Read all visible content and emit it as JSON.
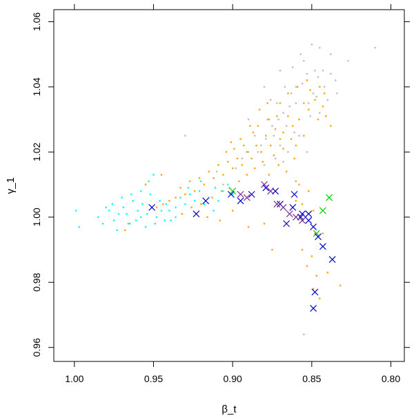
{
  "chart_data": {
    "type": "scatter",
    "xlabel": "β_t",
    "ylabel": "γ_1",
    "xlim": [
      1.013,
      0.7915
    ],
    "ylim": [
      0.9557,
      1.0637
    ],
    "x_reversed": true,
    "x_ticks": [
      1.0,
      0.95,
      0.9,
      0.85,
      0.8
    ],
    "x_tick_labels": [
      "1.00",
      "0.95",
      "0.90",
      "0.85",
      "0.80"
    ],
    "y_ticks": [
      0.96,
      0.98,
      1.0,
      1.02,
      1.04,
      1.06
    ],
    "y_tick_labels": [
      "0.96",
      "0.98",
      "1.00",
      "1.02",
      "1.04",
      "1.06"
    ],
    "grid": false,
    "legend": "none",
    "series": [
      {
        "color": "#bebebe",
        "marker": "point",
        "points": [
          [
            0.81,
            1.052
          ],
          [
            0.827,
            1.048
          ],
          [
            0.838,
            1.05
          ],
          [
            0.845,
            1.052
          ],
          [
            0.85,
            1.053
          ],
          [
            0.848,
            1.045
          ],
          [
            0.86,
            1.04
          ],
          [
            0.855,
            1.048
          ],
          [
            0.843,
            1.045
          ],
          [
            0.852,
            1.035
          ],
          [
            0.858,
            1.03
          ],
          [
            0.863,
            1.038
          ],
          [
            0.868,
            1.032
          ],
          [
            0.872,
            1.035
          ],
          [
            0.866,
            1.028
          ],
          [
            0.874,
            1.025
          ],
          [
            0.878,
            1.03
          ],
          [
            0.882,
            1.022
          ],
          [
            0.886,
            1.025
          ],
          [
            0.89,
            1.02
          ],
          [
            0.875,
            1.028
          ],
          [
            0.87,
            1.022
          ],
          [
            0.861,
            1.026
          ],
          [
            0.856,
            1.041
          ],
          [
            0.849,
            1.038
          ],
          [
            0.846,
            1.043
          ],
          [
            0.842,
            1.04
          ],
          [
            0.84,
            1.036
          ],
          [
            0.851,
            1.031
          ],
          [
            0.864,
            1.034
          ],
          [
            0.871,
            1.03
          ],
          [
            0.879,
            1.024
          ],
          [
            0.884,
            1.02
          ],
          [
            0.894,
            1.018
          ],
          [
            0.898,
            1.015
          ],
          [
            0.93,
            1.025
          ],
          [
            0.89,
            1.03
          ],
          [
            0.88,
            1.04
          ],
          [
            0.87,
            1.045
          ],
          [
            0.862,
            1.046
          ],
          [
            0.857,
            1.05
          ],
          [
            0.853,
            1.044
          ],
          [
            0.847,
            1.037
          ],
          [
            0.845,
            1.032
          ],
          [
            0.86,
            1.035
          ],
          [
            0.873,
            1.018
          ],
          [
            0.868,
            1.017
          ],
          [
            0.865,
            1.02
          ],
          [
            0.88,
            1.016
          ],
          [
            0.906,
            1.01
          ],
          [
            0.91,
            1.014
          ],
          [
            0.838,
            1.044
          ],
          [
            0.835,
            1.042
          ],
          [
            0.834,
            1.038
          ],
          [
            0.867,
            1.04
          ],
          [
            0.876,
            1.036
          ],
          [
            0.858,
            1.025
          ],
          [
            0.853,
            1.02
          ],
          [
            0.855,
            0.964
          ]
        ]
      },
      {
        "color": "#ffa500",
        "marker": "point",
        "points": [
          [
            0.842,
            1.038
          ],
          [
            0.848,
            1.036
          ],
          [
            0.845,
            1.04
          ],
          [
            0.852,
            1.033
          ],
          [
            0.855,
            1.035
          ],
          [
            0.858,
            1.03
          ],
          [
            0.862,
            1.028
          ],
          [
            0.865,
            1.031
          ],
          [
            0.868,
            1.026
          ],
          [
            0.87,
            1.024
          ],
          [
            0.873,
            1.027
          ],
          [
            0.876,
            1.022
          ],
          [
            0.879,
            1.025
          ],
          [
            0.882,
            1.02
          ],
          [
            0.885,
            1.022
          ],
          [
            0.888,
            1.018
          ],
          [
            0.891,
            1.02
          ],
          [
            0.894,
            1.016
          ],
          [
            0.897,
            1.018
          ],
          [
            0.9,
            1.015
          ],
          [
            0.903,
            1.017
          ],
          [
            0.906,
            1.013
          ],
          [
            0.909,
            1.016
          ],
          [
            0.912,
            1.012
          ],
          [
            0.915,
            1.014
          ],
          [
            0.918,
            1.01
          ],
          [
            0.921,
            1.012
          ],
          [
            0.924,
            1.008
          ],
          [
            0.927,
            1.011
          ],
          [
            0.93,
            1.007
          ],
          [
            0.933,
            1.009
          ],
          [
            0.936,
            1.006
          ],
          [
            0.94,
            1.005
          ],
          [
            0.944,
            1.004
          ],
          [
            0.948,
            1.003
          ],
          [
            0.887,
            1.026
          ],
          [
            0.884,
            1.028
          ],
          [
            0.877,
            1.03
          ],
          [
            0.872,
            1.031
          ],
          [
            0.893,
            1.022
          ],
          [
            0.899,
            1.021
          ],
          [
            0.904,
            1.02
          ],
          [
            0.881,
            1.017
          ],
          [
            0.874,
            1.019
          ],
          [
            0.868,
            1.021
          ],
          [
            0.863,
            1.024
          ],
          [
            0.86,
            1.022
          ],
          [
            0.855,
            1.025
          ],
          [
            0.907,
            1.008
          ],
          [
            0.913,
            1.006
          ],
          [
            0.92,
            1.004
          ],
          [
            0.926,
            1.003
          ],
          [
            0.932,
            1.001
          ],
          [
            0.86,
            1.011
          ],
          [
            0.858,
            1.01
          ],
          [
            0.856,
            1.004
          ],
          [
            0.852,
            1.008
          ],
          [
            0.849,
            1.002
          ],
          [
            0.848,
            0.995
          ],
          [
            0.85,
            0.988
          ],
          [
            0.853,
            0.985
          ],
          [
            0.856,
            0.99
          ],
          [
            0.849,
            0.978
          ],
          [
            0.847,
            0.982
          ],
          [
            0.86,
            1.005
          ],
          [
            0.832,
            0.979
          ],
          [
            0.84,
            0.983
          ],
          [
            0.875,
            0.99
          ],
          [
            0.88,
            0.998
          ],
          [
            0.89,
            0.997
          ],
          [
            0.9,
            1.002
          ],
          [
            0.908,
            0.999
          ],
          [
            0.916,
            1.0
          ],
          [
            0.965,
            0.998
          ],
          [
            0.968,
            0.996
          ],
          [
            0.945,
            1.013
          ],
          [
            0.955,
            1.01
          ],
          [
            0.838,
            1.028
          ],
          [
            0.841,
            1.031
          ],
          [
            0.843,
            1.034
          ],
          [
            0.846,
            1.03
          ],
          [
            0.878,
            1.035
          ],
          [
            0.883,
            1.033
          ],
          [
            0.889,
            1.028
          ],
          [
            0.895,
            1.024
          ],
          [
            0.901,
            1.023
          ],
          [
            0.891,
            1.013
          ],
          [
            0.896,
            1.011
          ],
          [
            0.902,
            1.009
          ],
          [
            0.886,
            1.015
          ],
          [
            0.877,
            1.013
          ],
          [
            0.871,
            1.016
          ],
          [
            0.866,
            1.014
          ],
          [
            0.861,
            1.018
          ],
          [
            0.87,
            1.035
          ],
          [
            0.865,
            1.038
          ],
          [
            0.859,
            1.04
          ],
          [
            0.853,
            1.042
          ],
          [
            0.851,
            1.039
          ],
          [
            0.843,
            0.995
          ],
          [
            0.845,
            0.975
          ]
        ]
      },
      {
        "color": "#00ffff",
        "marker": "point",
        "points": [
          [
            0.985,
            1.0
          ],
          [
            0.982,
            0.998
          ],
          [
            0.978,
            1.002
          ],
          [
            0.975,
            0.999
          ],
          [
            0.972,
            1.001
          ],
          [
            0.969,
            1.003
          ],
          [
            0.966,
            0.998
          ],
          [
            0.963,
            1.005
          ],
          [
            0.96,
            1.002
          ],
          [
            0.957,
            1.004
          ],
          [
            0.954,
            1.001
          ],
          [
            0.951,
            1.003
          ],
          [
            0.948,
            1.0
          ],
          [
            0.945,
            1.002
          ],
          [
            0.942,
            1.004
          ],
          [
            0.939,
            0.999
          ],
          [
            0.936,
            1.003
          ],
          [
            0.933,
            1.006
          ],
          [
            0.93,
            1.004
          ],
          [
            0.927,
            1.007
          ],
          [
            0.924,
            1.005
          ],
          [
            0.921,
            1.008
          ],
          [
            0.918,
            1.004
          ],
          [
            0.915,
            1.006
          ],
          [
            0.912,
            1.002
          ],
          [
            0.909,
            1.005
          ],
          [
            0.906,
            1.008
          ],
          [
            0.903,
            1.01
          ],
          [
            0.9,
            1.007
          ],
          [
            0.97,
            1.006
          ],
          [
            0.964,
            1.007
          ],
          [
            0.958,
            1.008
          ],
          [
            0.952,
            1.007
          ],
          [
            0.961,
            0.999
          ],
          [
            0.955,
            0.997
          ],
          [
            0.949,
            0.998
          ],
          [
            0.943,
            0.999
          ],
          [
            0.967,
            1.001
          ],
          [
            0.976,
            1.004
          ],
          [
            0.973,
            0.996
          ],
          [
            0.98,
            1.003
          ],
          [
            0.95,
            1.013
          ],
          [
            0.953,
            1.011
          ],
          [
            0.928,
            1.009
          ],
          [
            0.92,
            1.011
          ],
          [
            0.997,
            0.997
          ],
          [
            0.999,
            1.002
          ],
          [
            0.936,
            1.0
          ],
          [
            0.911,
            1.009
          ],
          [
            0.958,
            1.0
          ],
          [
            0.946,
            1.005
          ],
          [
            0.94,
            1.002
          ]
        ]
      },
      {
        "color": "#00cd00",
        "marker": "x",
        "points": [
          [
            0.839,
            1.006
          ],
          [
            0.843,
            1.002
          ],
          [
            0.847,
            0.995
          ],
          [
            0.9,
            1.008
          ]
        ]
      },
      {
        "color": "#0000cd",
        "marker": "x",
        "points": [
          [
            0.951,
            1.003
          ],
          [
            0.917,
            1.005
          ],
          [
            0.923,
            1.001
          ],
          [
            0.901,
            1.007
          ],
          [
            0.895,
            1.005
          ],
          [
            0.888,
            1.007
          ],
          [
            0.879,
            1.009
          ],
          [
            0.873,
            1.008
          ],
          [
            0.87,
            1.004
          ],
          [
            0.862,
            1.003
          ],
          [
            0.856,
            1.001
          ],
          [
            0.852,
            0.999
          ],
          [
            0.849,
            0.997
          ],
          [
            0.846,
            0.994
          ],
          [
            0.843,
            0.991
          ],
          [
            0.837,
            0.987
          ],
          [
            0.848,
            0.977
          ],
          [
            0.849,
            0.972
          ],
          [
            0.861,
            1.007
          ],
          [
            0.852,
            1.001
          ],
          [
            0.866,
            0.998
          ],
          [
            0.857,
            1.0
          ]
        ]
      },
      {
        "color": "#7a2b8a",
        "marker": "x",
        "points": [
          [
            0.88,
            1.01
          ],
          [
            0.876,
            1.008
          ],
          [
            0.872,
            1.004
          ],
          [
            0.868,
            1.003
          ],
          [
            0.864,
            1.001
          ],
          [
            0.86,
            1.0
          ],
          [
            0.856,
            0.999
          ],
          [
            0.895,
            1.007
          ],
          [
            0.891,
            1.006
          ]
        ]
      }
    ]
  }
}
